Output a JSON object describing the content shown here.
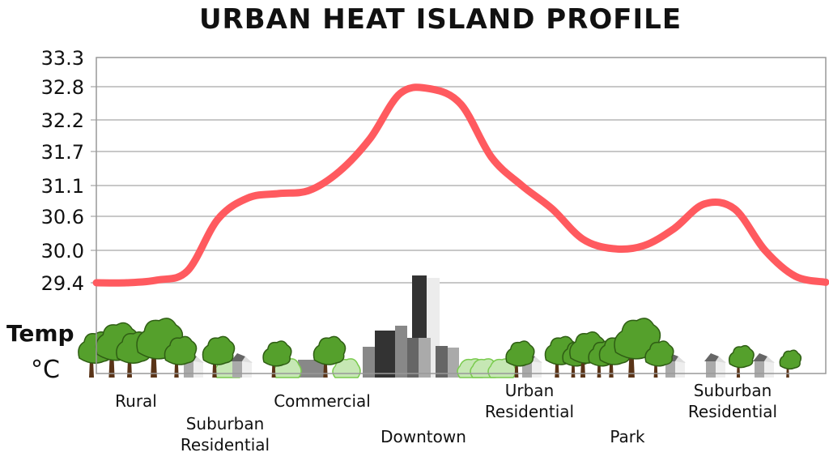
{
  "chart_data": {
    "type": "line",
    "title": "URBAN HEAT ISLAND PROFILE",
    "ylabel": "Temp",
    "yunit": "°C",
    "yticks": [
      "33.3",
      "32.8",
      "32.2",
      "31.7",
      "31.1",
      "30.6",
      "30.0",
      "29.4"
    ],
    "ylim": [
      29.4,
      33.3
    ],
    "grid": true,
    "line_color": "#FF5A5F",
    "zones": [
      {
        "label_lines": [
          "Rural"
        ]
      },
      {
        "label_lines": [
          "Suburban",
          "Residential"
        ]
      },
      {
        "label_lines": [
          "Commercial"
        ]
      },
      {
        "label_lines": [
          "Downtown"
        ]
      },
      {
        "label_lines": [
          "Urban",
          "Residential"
        ]
      },
      {
        "label_lines": [
          "Park"
        ]
      },
      {
        "label_lines": [
          "Suburban",
          "Residential"
        ]
      }
    ],
    "series": [
      {
        "values": [
          29.39,
          29.4,
          29.45,
          29.62,
          30.55,
          30.9,
          30.97,
          31.02,
          31.35,
          31.9,
          32.68,
          32.76,
          32.48,
          31.6,
          31.1,
          30.72,
          30.2,
          30.03,
          30.08,
          30.38,
          30.8,
          30.72,
          30.0,
          29.52,
          29.41
        ]
      }
    ]
  }
}
